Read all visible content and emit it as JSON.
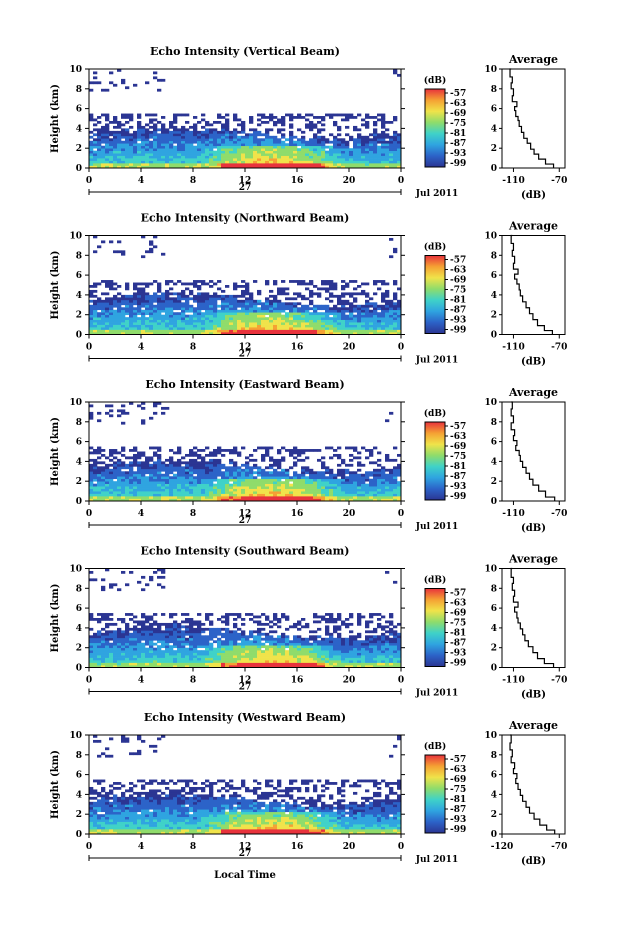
{
  "chart_data": {
    "type": "heatmap",
    "date_label": "Jul 2011",
    "day_label": "27",
    "xlabel_bottom": "Local Time",
    "x_ticks": [
      "0",
      "4",
      "8",
      "12",
      "16",
      "20",
      "0"
    ],
    "x_range_hours": [
      0,
      24
    ],
    "y_ticks": [
      "0",
      "2",
      "4",
      "6",
      "8",
      "10"
    ],
    "ylim": [
      0,
      10
    ],
    "ylabel": "Height (km)",
    "colorbar": {
      "unit": "(dB)",
      "ticks": [
        "-57",
        "-63",
        "-69",
        "-75",
        "-81",
        "-87",
        "-93",
        "-99"
      ],
      "colors": [
        "#e8323c",
        "#f5a133",
        "#f0e34a",
        "#8fdc6b",
        "#3fd2c8",
        "#2fa4e0",
        "#2c63c8",
        "#2b3593"
      ]
    },
    "average_panel": {
      "title": "Average",
      "xlabel": "(dB)",
      "xlim": [
        -120,
        -65
      ]
    },
    "panels": [
      {
        "title": "Echo Intensity (Vertical Beam)",
        "avg_x_ticks": [
          "-110",
          "-70"
        ],
        "avg_profile": [
          [
            -75,
            0.0
          ],
          [
            -82,
            0.4
          ],
          [
            -88,
            0.9
          ],
          [
            -92,
            1.4
          ],
          [
            -95,
            1.9
          ],
          [
            -98,
            2.5
          ],
          [
            -101,
            3.0
          ],
          [
            -103,
            3.6
          ],
          [
            -105,
            4.2
          ],
          [
            -106,
            4.8
          ],
          [
            -108,
            5.2
          ],
          [
            -109,
            5.8
          ],
          [
            -107,
            6.2
          ],
          [
            -111,
            6.7
          ],
          [
            -110,
            7.3
          ],
          [
            -112,
            8.0
          ],
          [
            -111,
            8.6
          ],
          [
            -113,
            9.2
          ],
          [
            -112,
            10.0
          ]
        ]
      },
      {
        "title": "Echo Intensity (Northward Beam)",
        "avg_x_ticks": [
          "-110",
          "-70"
        ],
        "avg_profile": [
          [
            -76,
            0.0
          ],
          [
            -83,
            0.4
          ],
          [
            -89,
            0.9
          ],
          [
            -93,
            1.5
          ],
          [
            -96,
            2.1
          ],
          [
            -99,
            2.7
          ],
          [
            -102,
            3.3
          ],
          [
            -104,
            3.9
          ],
          [
            -105,
            4.5
          ],
          [
            -107,
            5.1
          ],
          [
            -109,
            5.6
          ],
          [
            -106,
            6.1
          ],
          [
            -110,
            6.6
          ],
          [
            -109,
            7.2
          ],
          [
            -111,
            7.9
          ],
          [
            -110,
            8.5
          ],
          [
            -112,
            9.2
          ],
          [
            -111,
            10.0
          ]
        ]
      },
      {
        "title": "Echo Intensity (Eastward Beam)",
        "avg_x_ticks": [
          "-110",
          "-70"
        ],
        "avg_profile": [
          [
            -74,
            0.0
          ],
          [
            -82,
            0.4
          ],
          [
            -88,
            1.0
          ],
          [
            -93,
            1.6
          ],
          [
            -96,
            2.2
          ],
          [
            -99,
            2.8
          ],
          [
            -102,
            3.4
          ],
          [
            -104,
            4.0
          ],
          [
            -105,
            4.6
          ],
          [
            -108,
            5.1
          ],
          [
            -107,
            5.6
          ],
          [
            -110,
            6.1
          ],
          [
            -109,
            6.6
          ],
          [
            -112,
            7.2
          ],
          [
            -110,
            7.9
          ],
          [
            -112,
            8.6
          ],
          [
            -111,
            9.3
          ],
          [
            -112,
            10.0
          ]
        ]
      },
      {
        "title": "Echo Intensity (Southward Beam)",
        "avg_x_ticks": [
          "-110",
          "-70"
        ],
        "avg_profile": [
          [
            -75,
            0.0
          ],
          [
            -83,
            0.4
          ],
          [
            -89,
            0.9
          ],
          [
            -93,
            1.5
          ],
          [
            -97,
            2.1
          ],
          [
            -100,
            2.7
          ],
          [
            -102,
            3.3
          ],
          [
            -104,
            3.9
          ],
          [
            -106,
            4.5
          ],
          [
            -107,
            5.0
          ],
          [
            -109,
            5.6
          ],
          [
            -106,
            6.1
          ],
          [
            -110,
            6.6
          ],
          [
            -109,
            7.2
          ],
          [
            -111,
            7.8
          ],
          [
            -110,
            8.5
          ],
          [
            -112,
            9.1
          ],
          [
            -111,
            10.0
          ]
        ]
      },
      {
        "title": "Echo Intensity (Westward Beam)",
        "avg_x_ticks": [
          "-120",
          "-70"
        ],
        "avg_profile": [
          [
            -74,
            0.0
          ],
          [
            -81,
            0.4
          ],
          [
            -87,
            0.9
          ],
          [
            -92,
            1.5
          ],
          [
            -96,
            2.1
          ],
          [
            -99,
            2.7
          ],
          [
            -102,
            3.3
          ],
          [
            -104,
            3.9
          ],
          [
            -106,
            4.5
          ],
          [
            -108,
            5.1
          ],
          [
            -107,
            5.6
          ],
          [
            -110,
            6.1
          ],
          [
            -109,
            6.6
          ],
          [
            -112,
            7.2
          ],
          [
            -111,
            7.8
          ],
          [
            -113,
            8.5
          ],
          [
            -112,
            9.2
          ],
          [
            -113,
            10.0
          ]
        ]
      }
    ]
  }
}
